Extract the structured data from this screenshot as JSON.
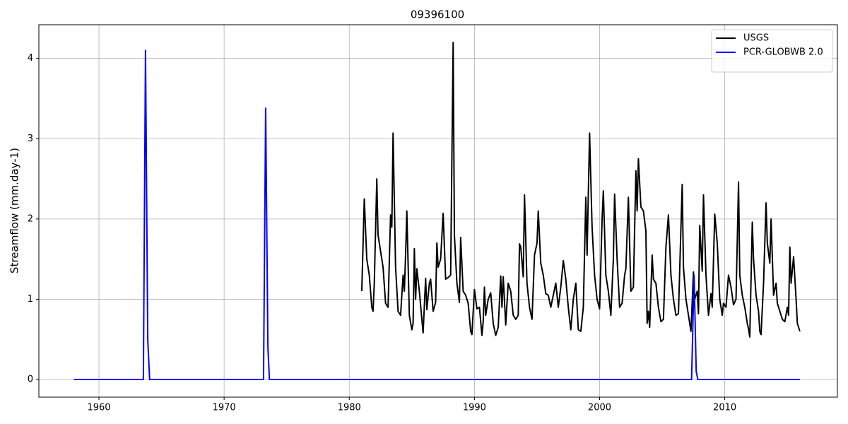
{
  "chart_data": {
    "type": "line",
    "title": "09396100",
    "y_label": "Streamflow (mm.day-1)",
    "xlim": [
      1955.2,
      2019.0
    ],
    "ylim": [
      -0.22,
      4.42
    ],
    "xticks": [
      1960,
      1970,
      1980,
      1990,
      2000,
      2010
    ],
    "yticks": [
      0,
      1,
      2,
      3,
      4
    ],
    "grid": true,
    "legend": "upper right",
    "series": [
      {
        "name": "USGS",
        "color": "#000000",
        "x": [
          1981.0,
          1981.2,
          1981.4,
          1981.6,
          1981.8,
          1981.9,
          1982.0,
          1982.2,
          1982.3,
          1982.5,
          1982.7,
          1982.9,
          1983.1,
          1983.3,
          1983.4,
          1983.5,
          1983.7,
          1983.9,
          1984.1,
          1984.3,
          1984.4,
          1984.5,
          1984.6,
          1984.8,
          1985.0,
          1985.1,
          1985.2,
          1985.3,
          1985.4,
          1985.6,
          1985.8,
          1985.9,
          1986.1,
          1986.2,
          1986.4,
          1986.5,
          1986.7,
          1986.9,
          1987.0,
          1987.1,
          1987.3,
          1987.5,
          1987.7,
          1987.9,
          1988.1,
          1988.3,
          1988.4,
          1988.6,
          1988.8,
          1988.9,
          1989.1,
          1989.3,
          1989.5,
          1989.7,
          1989.8,
          1990.0,
          1990.2,
          1990.4,
          1990.6,
          1990.7,
          1990.8,
          1990.9,
          1991.1,
          1991.3,
          1991.5,
          1991.7,
          1991.9,
          1992.1,
          1992.2,
          1992.3,
          1992.5,
          1992.7,
          1992.9,
          1993.1,
          1993.3,
          1993.5,
          1993.6,
          1993.7,
          1993.9,
          1994.0,
          1994.2,
          1994.4,
          1994.6,
          1994.8,
          1995.0,
          1995.1,
          1995.3,
          1995.5,
          1995.7,
          1995.9,
          1996.1,
          1996.3,
          1996.5,
          1996.7,
          1996.9,
          1997.1,
          1997.3,
          1997.5,
          1997.7,
          1997.9,
          1998.1,
          1998.3,
          1998.5,
          1998.7,
          1998.9,
          1999.0,
          1999.2,
          1999.4,
          1999.6,
          1999.8,
          2000.0,
          2000.2,
          2000.3,
          2000.5,
          2000.7,
          2000.9,
          2001.1,
          2001.2,
          2001.4,
          2001.6,
          2001.8,
          2002.0,
          2002.1,
          2002.3,
          2002.5,
          2002.7,
          2002.9,
          2003.0,
          2003.1,
          2003.3,
          2003.5,
          2003.7,
          2003.8,
          2003.9,
          2004.0,
          2004.2,
          2004.3,
          2004.5,
          2004.7,
          2004.9,
          2005.1,
          2005.3,
          2005.5,
          2005.7,
          2005.9,
          2006.1,
          2006.3,
          2006.6,
          2006.7,
          2006.9,
          2007.1,
          2007.3,
          2007.5,
          2007.6,
          2007.8,
          2007.9,
          2008.0,
          2008.2,
          2008.3,
          2008.5,
          2008.7,
          2008.9,
          2009.0,
          2009.2,
          2009.4,
          2009.6,
          2009.8,
          2009.9,
          2010.1,
          2010.3,
          2010.5,
          2010.7,
          2010.9,
          2011.1,
          2011.2,
          2011.4,
          2011.6,
          2011.8,
          2011.9,
          2012.0,
          2012.2,
          2012.3,
          2012.5,
          2012.7,
          2012.8,
          2012.9,
          2013.1,
          2013.3,
          2013.4,
          2013.6,
          2013.7,
          2013.9,
          2014.1,
          2014.2,
          2014.4,
          2014.6,
          2014.8,
          2015.0,
          2015.1,
          2015.2,
          2015.3,
          2015.5,
          2015.7,
          2015.8,
          2016.0
        ],
        "values": [
          1.1,
          2.25,
          1.5,
          1.3,
          0.9,
          0.85,
          1.2,
          2.5,
          1.8,
          1.6,
          1.4,
          0.95,
          0.9,
          2.05,
          1.9,
          3.07,
          1.4,
          0.85,
          0.8,
          1.3,
          1.1,
          1.55,
          2.1,
          0.8,
          0.62,
          0.7,
          1.63,
          1.0,
          1.38,
          1.1,
          0.75,
          0.58,
          1.26,
          0.87,
          1.2,
          1.25,
          0.85,
          0.96,
          1.7,
          1.4,
          1.5,
          2.07,
          1.25,
          1.27,
          1.3,
          4.2,
          1.8,
          1.2,
          0.96,
          1.77,
          1.1,
          1.05,
          0.95,
          0.6,
          0.56,
          1.12,
          0.88,
          0.9,
          0.55,
          0.72,
          1.15,
          0.8,
          1.0,
          1.08,
          0.7,
          0.55,
          0.65,
          1.29,
          0.9,
          1.28,
          0.68,
          1.2,
          1.1,
          0.8,
          0.75,
          0.8,
          1.69,
          1.65,
          1.28,
          2.3,
          1.2,
          0.9,
          0.75,
          1.55,
          1.7,
          2.1,
          1.45,
          1.3,
          1.07,
          1.05,
          0.9,
          1.05,
          1.2,
          0.9,
          1.15,
          1.48,
          1.25,
          0.9,
          0.62,
          1.0,
          1.2,
          0.62,
          0.6,
          0.9,
          2.27,
          1.55,
          3.07,
          1.9,
          1.3,
          1.0,
          0.88,
          2.0,
          2.35,
          1.3,
          1.1,
          0.8,
          1.5,
          2.31,
          1.5,
          0.9,
          0.95,
          1.3,
          1.38,
          2.27,
          1.1,
          1.15,
          2.6,
          2.1,
          2.75,
          2.15,
          2.1,
          1.85,
          0.7,
          0.85,
          0.65,
          1.55,
          1.25,
          1.2,
          0.9,
          0.72,
          0.75,
          1.65,
          2.05,
          1.3,
          1.0,
          0.8,
          0.82,
          2.43,
          1.4,
          1.0,
          0.8,
          0.6,
          1.34,
          1.0,
          1.1,
          0.82,
          1.92,
          1.35,
          2.3,
          1.3,
          0.8,
          1.07,
          0.9,
          2.06,
          1.7,
          1.0,
          0.8,
          0.95,
          0.9,
          1.3,
          1.15,
          0.93,
          1.0,
          2.46,
          1.3,
          1.05,
          0.9,
          0.7,
          0.63,
          0.53,
          1.96,
          1.5,
          1.05,
          0.85,
          0.6,
          0.56,
          1.2,
          2.2,
          1.7,
          1.45,
          2.0,
          1.05,
          1.2,
          0.95,
          0.85,
          0.75,
          0.72,
          0.9,
          0.8,
          1.65,
          1.2,
          1.53,
          1.0,
          0.7,
          0.6
        ]
      },
      {
        "name": "PCR-GLOBWB 2.0",
        "color": "#0000ff",
        "x": [
          1958.0,
          1963.55,
          1963.72,
          1963.9,
          1964.05,
          1973.15,
          1973.32,
          1973.5,
          1973.62,
          2007.35,
          2007.55,
          2007.72,
          2007.85,
          2016.0
        ],
        "values": [
          0,
          0,
          4.1,
          0.5,
          0,
          0,
          3.38,
          0.4,
          0,
          0,
          1.3,
          0.1,
          0,
          0
        ]
      }
    ]
  }
}
